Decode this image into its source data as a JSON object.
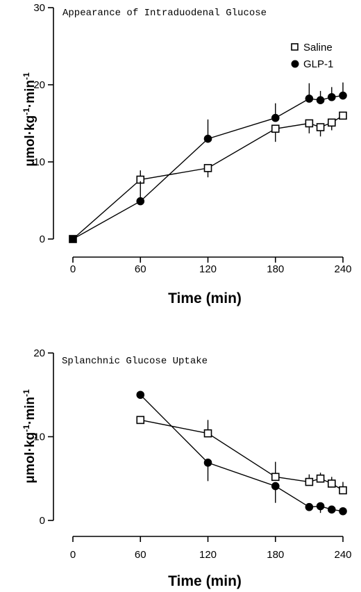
{
  "chart_data": [
    {
      "type": "line",
      "title": "Appearance of Intraduodenal Glucose",
      "xlabel": "Time (min)",
      "ylabel": "μmol·kg⁻¹·min⁻¹",
      "ylabel_parts": {
        "base": "μmol",
        "kg": "kg",
        "min": "min",
        "exp": "-1"
      },
      "xlim": [
        0,
        240
      ],
      "ylim": [
        0,
        30
      ],
      "xticks": [
        "0",
        "60",
        "120",
        "180",
        "240"
      ],
      "xtick_values": [
        0,
        60,
        120,
        180,
        240
      ],
      "yticks": [
        "0",
        "10",
        "20",
        "30"
      ],
      "ytick_values": [
        0,
        10,
        20,
        30
      ],
      "grid": false,
      "legend_position": "top-right",
      "series": [
        {
          "name": "Saline",
          "marker": "open-square",
          "x": [
            0,
            60,
            120,
            180,
            210,
            220,
            230,
            240
          ],
          "y": [
            0,
            7.7,
            9.2,
            14.3,
            15.0,
            14.5,
            15.1,
            16.0
          ],
          "err_low": [
            0,
            0,
            1.2,
            1.7,
            1.3,
            1.2,
            1.0,
            0
          ],
          "err_high": [
            0,
            1.2,
            0,
            0,
            0,
            0,
            0,
            0
          ]
        },
        {
          "name": "GLP-1",
          "marker": "filled-circle",
          "x": [
            0,
            60,
            120,
            180,
            210,
            220,
            230,
            240
          ],
          "y": [
            0,
            4.9,
            13.0,
            15.7,
            18.2,
            18.0,
            18.4,
            18.6
          ],
          "err_low": [
            0,
            0,
            0,
            0,
            0,
            0,
            0,
            0
          ],
          "err_high": [
            0,
            2.6,
            2.5,
            1.9,
            2.0,
            1.2,
            1.3,
            1.7
          ]
        }
      ]
    },
    {
      "type": "line",
      "title": "Splanchnic Glucose Uptake",
      "xlabel": "Time (min)",
      "ylabel": "μmol·kg⁻¹·min⁻¹",
      "ylabel_parts": {
        "base": "μmol",
        "kg": "kg",
        "min": "min",
        "exp": "-1"
      },
      "xlim": [
        0,
        240
      ],
      "ylim": [
        0,
        20
      ],
      "xticks": [
        "0",
        "60",
        "120",
        "180",
        "240"
      ],
      "xtick_values": [
        0,
        60,
        120,
        180,
        240
      ],
      "yticks": [
        "0",
        "10",
        "20"
      ],
      "ytick_values": [
        0,
        10,
        20
      ],
      "grid": false,
      "legend_position": "none",
      "series": [
        {
          "name": "Saline",
          "marker": "open-square",
          "x": [
            60,
            120,
            180,
            210,
            220,
            230,
            240
          ],
          "y": [
            12.0,
            10.4,
            5.2,
            4.6,
            5.0,
            4.4,
            3.6
          ],
          "err_low": [
            0,
            0,
            0,
            0,
            0,
            0,
            0
          ],
          "err_high": [
            0,
            1.6,
            1.8,
            0.9,
            0.7,
            0.8,
            1.0
          ]
        },
        {
          "name": "GLP-1",
          "marker": "filled-circle",
          "x": [
            60,
            120,
            180,
            210,
            220,
            230,
            240
          ],
          "y": [
            15.0,
            6.9,
            4.1,
            1.6,
            1.7,
            1.3,
            1.1
          ],
          "err_low": [
            0,
            2.2,
            2.0,
            0,
            0.8,
            0,
            0
          ],
          "err_high": [
            0,
            0,
            0,
            0,
            0,
            0,
            0
          ]
        }
      ]
    }
  ]
}
